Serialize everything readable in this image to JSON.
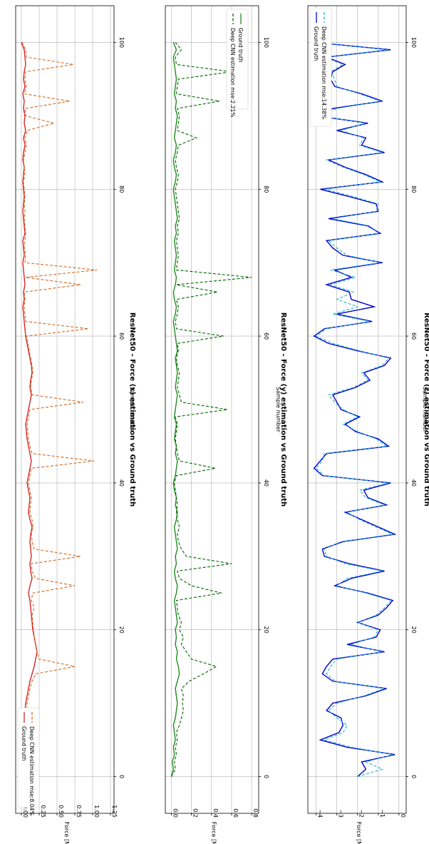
{
  "chart_data": [
    {
      "type": "line",
      "title": "ResNet50 - Force (x) estimation vs Ground truth",
      "xlabel": "Sample number",
      "ylabel": "Force [N]",
      "xlim": [
        -5,
        105
      ],
      "ylim": [
        -0.08,
        1.3
      ],
      "xticks": [
        0,
        20,
        40,
        60,
        80,
        100
      ],
      "yticks": [
        0.0,
        0.25,
        0.5,
        0.75,
        1.0,
        1.25
      ],
      "ytick_labels": [
        "0.00",
        "0.25",
        "0.50",
        "0.75",
        "1.00",
        "1.25"
      ],
      "legend_position": "lower-left",
      "legend_order": [
        0,
        1
      ],
      "colors": {
        "ground": "#d62728",
        "estimate": "#d2691e"
      },
      "series": [
        {
          "name": "Ground truth",
          "style": "solid",
          "values": [
            0.0,
            0.02,
            0.04,
            0.03,
            0.05,
            0.03,
            0.02,
            0.04,
            0.03,
            0.05,
            0.06,
            0.08,
            0.1,
            0.12,
            0.15,
            0.18,
            0.2,
            0.22,
            0.2,
            0.18,
            0.16,
            0.15,
            0.14,
            0.13,
            0.12,
            0.1,
            0.12,
            0.15,
            0.13,
            0.12,
            0.14,
            0.13,
            0.12,
            0.13,
            0.15,
            0.12,
            0.1,
            0.11,
            0.12,
            0.1,
            0.08,
            0.1,
            0.12,
            0.14,
            0.12,
            0.1,
            0.08,
            0.07,
            0.06,
            0.08,
            0.1,
            0.12,
            0.14,
            0.12,
            0.13,
            0.15,
            0.14,
            0.12,
            0.1,
            0.08,
            0.06,
            0.05,
            0.04,
            0.03,
            0.02,
            0.04,
            0.03,
            0.05,
            0.04,
            0.03,
            0.02,
            0.04,
            0.03,
            0.02,
            0.05,
            0.04,
            0.03,
            0.02,
            0.03,
            0.04,
            0.03,
            0.02,
            0.03,
            0.04,
            0.02,
            0.03,
            0.05,
            0.03,
            0.06,
            0.04,
            0.05,
            0.03,
            0.04,
            0.02,
            0.05,
            0.03,
            0.04,
            0.06,
            0.05,
            0.04,
            0.0
          ]
        },
        {
          "name": "Deep CNN estimation mse:8.04%",
          "style": "dashed",
          "values": [
            0.0,
            0.05,
            0.08,
            0.06,
            0.04,
            0.07,
            0.05,
            0.08,
            0.06,
            0.07,
            0.08,
            0.1,
            0.12,
            0.15,
            0.2,
            0.75,
            0.25,
            0.22,
            0.2,
            0.18,
            0.17,
            0.16,
            0.15,
            0.18,
            0.14,
            0.16,
            0.75,
            0.2,
            0.15,
            0.14,
            0.83,
            0.18,
            0.15,
            0.14,
            0.16,
            0.15,
            0.12,
            0.13,
            0.14,
            0.12,
            0.1,
            0.12,
            0.14,
            1.02,
            0.15,
            0.12,
            0.1,
            0.09,
            0.08,
            0.1,
            0.12,
            0.87,
            0.15,
            0.13,
            0.14,
            0.16,
            0.15,
            0.13,
            0.11,
            0.09,
            0.07,
            0.94,
            0.06,
            0.05,
            0.04,
            0.05,
            0.04,
            0.83,
            0.06,
            1.06,
            0.05,
            0.06,
            0.04,
            0.05,
            0.06,
            0.05,
            0.04,
            0.05,
            0.04,
            0.05,
            0.04,
            0.03,
            0.05,
            0.04,
            0.03,
            0.05,
            0.07,
            0.05,
            0.08,
            0.46,
            0.06,
            0.05,
            0.68,
            0.04,
            0.07,
            0.05,
            0.06,
            0.73,
            0.07,
            0.06,
            0.01
          ]
        }
      ]
    },
    {
      "type": "line",
      "title": "ResNet50 - Force (y) estimation vs Ground truth",
      "xlabel": "Sample number",
      "ylabel": "Force [N]",
      "xlim": [
        -5,
        105
      ],
      "ylim": [
        -0.06,
        0.87
      ],
      "xticks": [
        0,
        20,
        40,
        60,
        80,
        100
      ],
      "yticks": [
        0.0,
        0.2,
        0.4,
        0.6,
        0.8
      ],
      "ytick_labels": [
        "0.0",
        "0.2",
        "0.4",
        "0.6",
        "0.8"
      ],
      "legend_position": "upper-right",
      "legend_order": [
        1,
        0
      ],
      "colors": {
        "ground": "#228b22",
        "estimate": "#006400"
      },
      "series": [
        {
          "name": "Ground truth",
          "style": "solid",
          "values": [
            0.0,
            0.02,
            0.01,
            0.03,
            0.02,
            0.04,
            0.03,
            0.02,
            0.04,
            0.05,
            0.06,
            0.05,
            0.04,
            0.06,
            0.08,
            0.07,
            0.05,
            0.06,
            0.04,
            0.05,
            0.04,
            0.06,
            0.05,
            0.04,
            0.03,
            0.05,
            0.06,
            0.04,
            0.03,
            0.05,
            0.04,
            0.06,
            0.05,
            0.04,
            0.03,
            0.05,
            0.06,
            0.04,
            0.05,
            0.03,
            0.02,
            0.04,
            0.05,
            0.06,
            0.04,
            0.05,
            0.03,
            0.04,
            0.05,
            0.03,
            0.04,
            0.05,
            0.06,
            0.04,
            0.05,
            0.06,
            0.05,
            0.04,
            0.06,
            0.05,
            0.04,
            0.03,
            0.02,
            0.04,
            0.05,
            0.03,
            0.02,
            0.04,
            0.05,
            0.03,
            0.04,
            0.05,
            0.04,
            0.03,
            0.05,
            0.04,
            0.06,
            0.05,
            0.04,
            0.03,
            0.02,
            0.04,
            0.05,
            0.03,
            0.02,
            0.04,
            0.05,
            0.03,
            0.04,
            0.05,
            0.06,
            0.04,
            0.05,
            0.03,
            0.04,
            0.05,
            0.04,
            0.03,
            0.02,
            0.05,
            0.02
          ]
        },
        {
          "name": "Deep CNN estimation mse:2.21%",
          "style": "dashed",
          "values": [
            0.0,
            0.04,
            0.03,
            0.05,
            0.04,
            0.06,
            0.05,
            0.08,
            0.1,
            0.12,
            0.11,
            0.12,
            0.1,
            0.18,
            0.32,
            0.45,
            0.2,
            0.15,
            0.1,
            0.12,
            0.08,
            0.1,
            0.07,
            0.06,
            0.05,
            0.5,
            0.2,
            0.08,
            0.06,
            0.6,
            0.15,
            0.1,
            0.07,
            0.06,
            0.08,
            0.06,
            0.05,
            0.06,
            0.05,
            0.04,
            0.03,
            0.05,
            0.44,
            0.08,
            0.06,
            0.05,
            0.04,
            0.05,
            0.06,
            0.04,
            0.56,
            0.1,
            0.08,
            0.06,
            0.07,
            0.08,
            0.06,
            0.05,
            0.07,
            0.06,
            0.52,
            0.05,
            0.04,
            0.06,
            0.07,
            0.05,
            0.46,
            0.05,
            0.8,
            0.05,
            0.06,
            0.07,
            0.06,
            0.05,
            0.07,
            0.06,
            0.08,
            0.07,
            0.06,
            0.05,
            0.04,
            0.06,
            0.07,
            0.05,
            0.04,
            0.06,
            0.07,
            0.25,
            0.06,
            0.07,
            0.08,
            0.06,
            0.48,
            0.05,
            0.06,
            0.07,
            0.6,
            0.05,
            0.04,
            0.1,
            0.04
          ]
        }
      ]
    },
    {
      "type": "line",
      "title": "ResNet50 - Force (z) estimation vs Ground truth",
      "xlabel": "Sample number",
      "ylabel": "Force [N]",
      "xlim": [
        -5,
        105
      ],
      "ylim": [
        -4.4,
        0.35
      ],
      "xticks": [
        0,
        20,
        40,
        60,
        80,
        100
      ],
      "yticks": [
        0,
        -1,
        -2,
        -3,
        -4
      ],
      "ytick_labels": [
        "0",
        "−1",
        "−2",
        "−3",
        "−4"
      ],
      "legend_position": "upper-right",
      "legend_order": [
        0,
        1
      ],
      "colors": {
        "ground": "#0000cd",
        "estimate": "#20b2d0"
      },
      "series": [
        {
          "name": "Ground truth",
          "style": "solid",
          "values": [
            -2.0,
            -1.6,
            -1.8,
            -0.2,
            -2.5,
            -3.8,
            -2.9,
            -2.7,
            -2.8,
            -3.5,
            -3.2,
            -1.6,
            -0.6,
            -3.2,
            -3.7,
            -3.5,
            -3.2,
            -0.7,
            -2.5,
            -1.1,
            -0.9,
            -2.0,
            -1.0,
            -0.6,
            -0.3,
            -1.5,
            -3.1,
            -2.3,
            -0.7,
            -2.4,
            -3.6,
            -3.7,
            -2.7,
            -0.2,
            -1.0,
            -1.8,
            -2.6,
            -0.6,
            -1.5,
            -1.7,
            -0.4,
            -3.7,
            -4.1,
            -3.8,
            -3.5,
            -0.5,
            -1.0,
            -2.1,
            -2.6,
            -1.9,
            -2.8,
            -3.0,
            -3.2,
            -2.1,
            -1.4,
            -1.7,
            -0.7,
            -0.4,
            -2.0,
            -3.4,
            -4.1,
            -3.6,
            -1.3,
            -3.0,
            -1.2,
            -2.3,
            -2.4,
            -3.5,
            -2.3,
            -3.1,
            -0.8,
            -2.7,
            -3.2,
            -3.5,
            -0.9,
            -1.5,
            -3.4,
            -1.0,
            -1.1,
            -2.4,
            -3.8,
            -0.8,
            -1.6,
            -2.6,
            -3.4,
            -0.7,
            -1.8,
            -1.6,
            -3.0,
            -1.5,
            -4.0,
            -3.2,
            -0.8,
            -1.8,
            -3.1,
            -3.3,
            -3.2,
            -2.6,
            -3.5,
            -0.4,
            -4.1
          ]
        },
        {
          "name": "Deep CNN estimation mse:14.38%",
          "style": "dashed",
          "values": [
            -2.0,
            -0.8,
            -1.6,
            -0.3,
            -2.3,
            -3.6,
            -2.7,
            -2.5,
            -3.0,
            -3.4,
            -3.0,
            -1.7,
            -0.7,
            -3.1,
            -3.5,
            -3.3,
            -3.0,
            -0.8,
            -2.3,
            -1.2,
            -1.0,
            -2.0,
            -1.1,
            -0.7,
            -0.4,
            -1.6,
            -3.0,
            -2.5,
            -0.8,
            -2.6,
            -3.5,
            -3.6,
            -2.8,
            -0.3,
            -1.1,
            -1.9,
            -2.5,
            -0.7,
            -1.6,
            -1.9,
            -0.5,
            -3.6,
            -4.0,
            -3.7,
            -3.6,
            -0.6,
            -1.1,
            -2.0,
            -2.7,
            -2.0,
            -2.7,
            -3.1,
            -3.4,
            -2.2,
            -1.5,
            -1.8,
            -0.8,
            -0.5,
            -1.9,
            -3.2,
            -4.0,
            -3.5,
            -1.4,
            -3.2,
            -2.0,
            -3.0,
            -2.2,
            -3.3,
            -2.1,
            -3.3,
            -0.9,
            -2.5,
            -3.0,
            -3.4,
            -1.0,
            -1.4,
            -3.2,
            -1.1,
            -1.0,
            -2.2,
            -3.6,
            -0.9,
            -1.7,
            -2.7,
            -3.5,
            -0.8,
            -1.9,
            -1.7,
            -2.8,
            -1.6,
            -3.9,
            -3.0,
            -0.9,
            -1.9,
            -3.0,
            -3.1,
            -3.3,
            -2.7,
            -3.6,
            -0.5,
            -4.2
          ]
        }
      ]
    }
  ]
}
